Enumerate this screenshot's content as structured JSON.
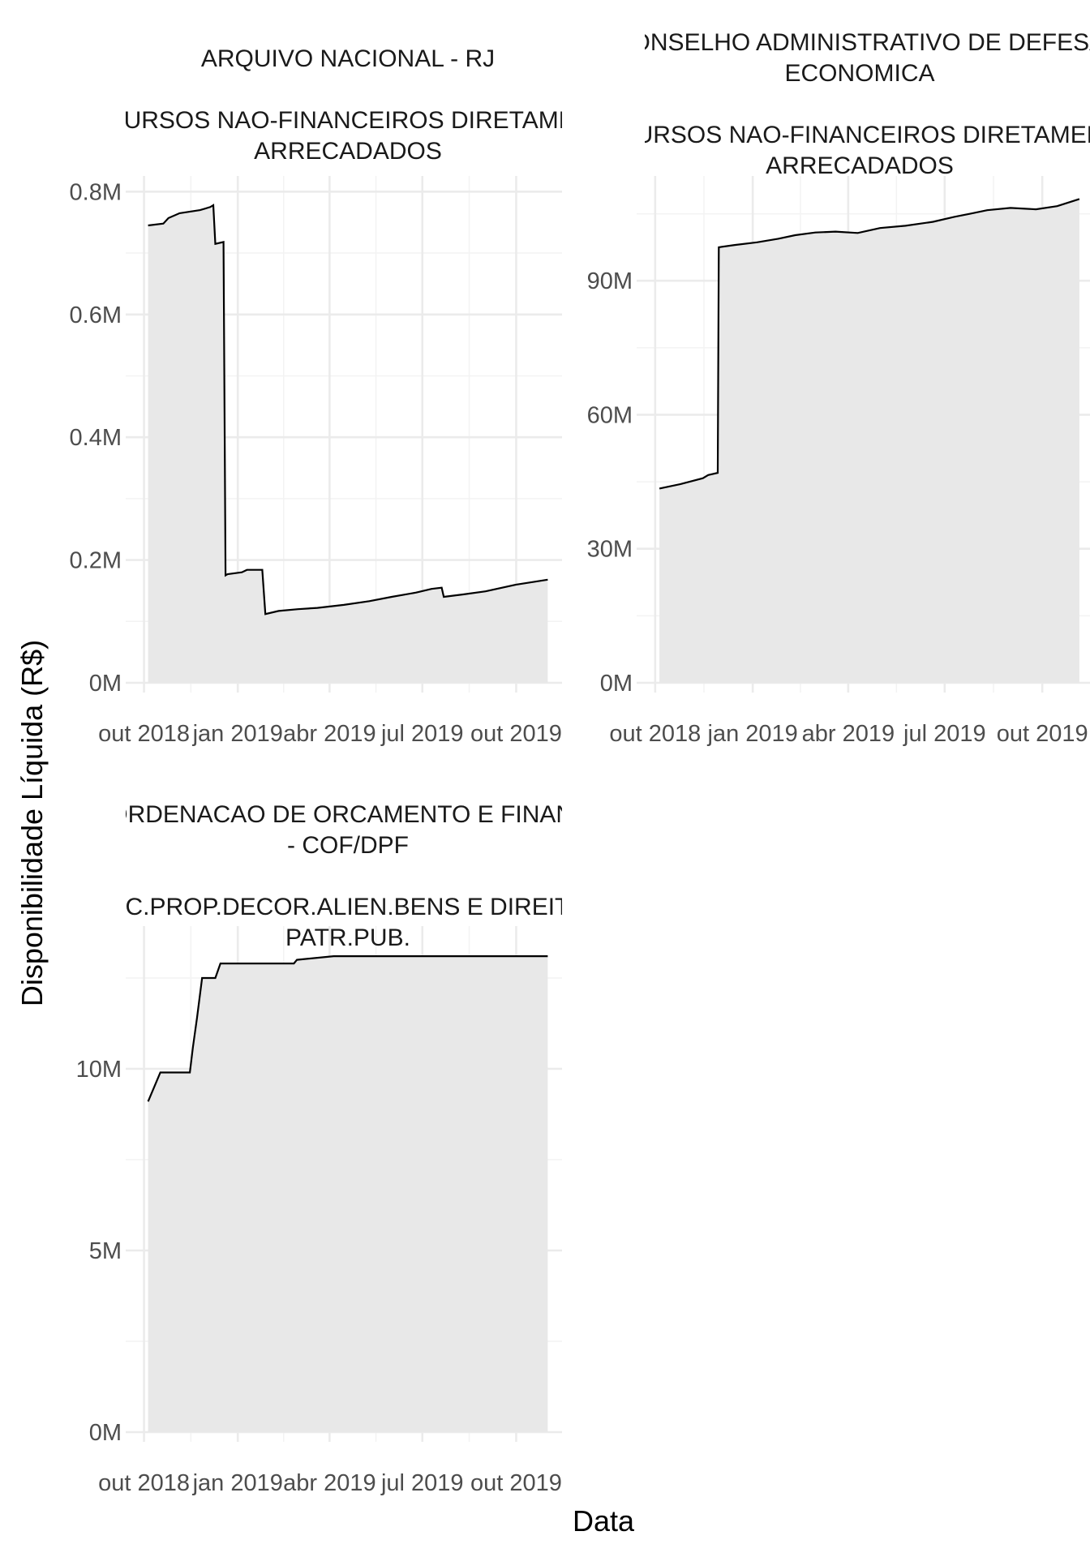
{
  "ylabel": "Disponibilidade Líquida (R$)",
  "xlabel": "Data",
  "chart_data": [
    {
      "type": "area",
      "title_lines": [
        "ARQUIVO NACIONAL - RJ",
        "",
        "RECURSOS NAO-FINANCEIROS DIRETAMENTE",
        "ARRECADADOS"
      ],
      "x_ticks": [
        "2018-10-01",
        "2019-01-01",
        "2019-04-01",
        "2019-07-01",
        "2019-10-01"
      ],
      "x_tick_labels": [
        "out 2018",
        "jan 2019",
        "abr 2019",
        "jul 2019",
        "out 2019"
      ],
      "xlim": [
        "2018-09-25",
        "2019-11-15"
      ],
      "y_ticks": [
        0,
        200000,
        400000,
        600000,
        800000
      ],
      "y_tick_labels": [
        "0M",
        "0.2M",
        "0.4M",
        "0.6M",
        "0.8M"
      ],
      "ylim": [
        0,
        815000
      ],
      "x": [
        "2018-10-05",
        "2018-10-20",
        "2018-10-25",
        "2018-11-05",
        "2018-11-25",
        "2018-12-05",
        "2018-12-08",
        "2018-12-10",
        "2018-12-18",
        "2018-12-20",
        "2018-12-22",
        "2019-01-05",
        "2019-01-10",
        "2019-01-25",
        "2019-01-28",
        "2019-02-10",
        "2019-03-01",
        "2019-03-20",
        "2019-04-15",
        "2019-05-10",
        "2019-06-01",
        "2019-06-25",
        "2019-07-10",
        "2019-07-20",
        "2019-07-22",
        "2019-08-10",
        "2019-09-01",
        "2019-10-01",
        "2019-11-01"
      ],
      "y": [
        745000,
        748000,
        757000,
        765000,
        770000,
        775000,
        778000,
        715000,
        718000,
        175000,
        177000,
        180000,
        184000,
        184000,
        112000,
        117000,
        120000,
        122000,
        127000,
        133000,
        140000,
        147000,
        153000,
        155000,
        140000,
        144000,
        149000,
        160000,
        168000
      ]
    },
    {
      "type": "area",
      "title_lines": [
        "CONSELHO ADMINISTRATIVO DE DEFESA",
        "ECONOMICA",
        "",
        "RECURSOS NAO-FINANCEIROS DIRETAMENTE",
        "ARRECADADOS"
      ],
      "x_ticks": [
        "2018-10-01",
        "2019-01-01",
        "2019-04-01",
        "2019-07-01",
        "2019-10-01"
      ],
      "x_tick_labels": [
        "out 2018",
        "jan 2019",
        "abr 2019",
        "jul 2019",
        "out 2019"
      ],
      "xlim": [
        "2018-09-25",
        "2019-11-15"
      ],
      "y_ticks": [
        0,
        30000000,
        60000000,
        90000000
      ],
      "y_tick_labels": [
        "0M",
        "30M",
        "60M",
        "90M"
      ],
      "ylim": [
        0,
        112000000
      ],
      "x": [
        "2018-10-05",
        "2018-10-25",
        "2018-11-15",
        "2018-11-20",
        "2018-11-29",
        "2018-11-30",
        "2018-12-15",
        "2019-01-05",
        "2019-01-25",
        "2019-02-10",
        "2019-03-01",
        "2019-03-20",
        "2019-04-10",
        "2019-05-01",
        "2019-05-25",
        "2019-06-20",
        "2019-07-10",
        "2019-07-25",
        "2019-08-10",
        "2019-09-01",
        "2019-09-25",
        "2019-10-15",
        "2019-11-05"
      ],
      "y": [
        43500000,
        44500000,
        45800000,
        46500000,
        47000000,
        97500000,
        98000000,
        98600000,
        99400000,
        100200000,
        100800000,
        101000000,
        100700000,
        101800000,
        102300000,
        103200000,
        104300000,
        105000000,
        105800000,
        106300000,
        106000000,
        106700000,
        108300000
      ]
    },
    {
      "type": "area",
      "title_lines": [
        "COORDENACAO DE ORCAMENTO E FINANCAS",
        "- COF/DPF",
        "",
        "REC.PROP.DECOR.ALIEN.BENS E DIREITOS",
        "PATR.PUB."
      ],
      "x_ticks": [
        "2018-10-01",
        "2019-01-01",
        "2019-04-01",
        "2019-07-01",
        "2019-10-01"
      ],
      "x_tick_labels": [
        "out 2018",
        "jan 2019",
        "abr 2019",
        "jul 2019",
        "out 2019"
      ],
      "xlim": [
        "2018-09-25",
        "2019-11-15"
      ],
      "y_ticks": [
        0,
        5000000,
        10000000
      ],
      "y_tick_labels": [
        "0M",
        "5M",
        "10M"
      ],
      "ylim": [
        0,
        13750000
      ],
      "x": [
        "2018-10-05",
        "2018-10-17",
        "2018-11-15",
        "2018-11-18",
        "2018-11-22",
        "2018-11-27",
        "2018-12-10",
        "2018-12-15",
        "2019-02-25",
        "2019-02-28",
        "2019-04-05",
        "2019-11-01"
      ],
      "y": [
        9100000,
        9900000,
        9900000,
        10600000,
        11400000,
        12500000,
        12500000,
        12900000,
        12900000,
        13000000,
        13100000,
        13100000
      ]
    }
  ]
}
